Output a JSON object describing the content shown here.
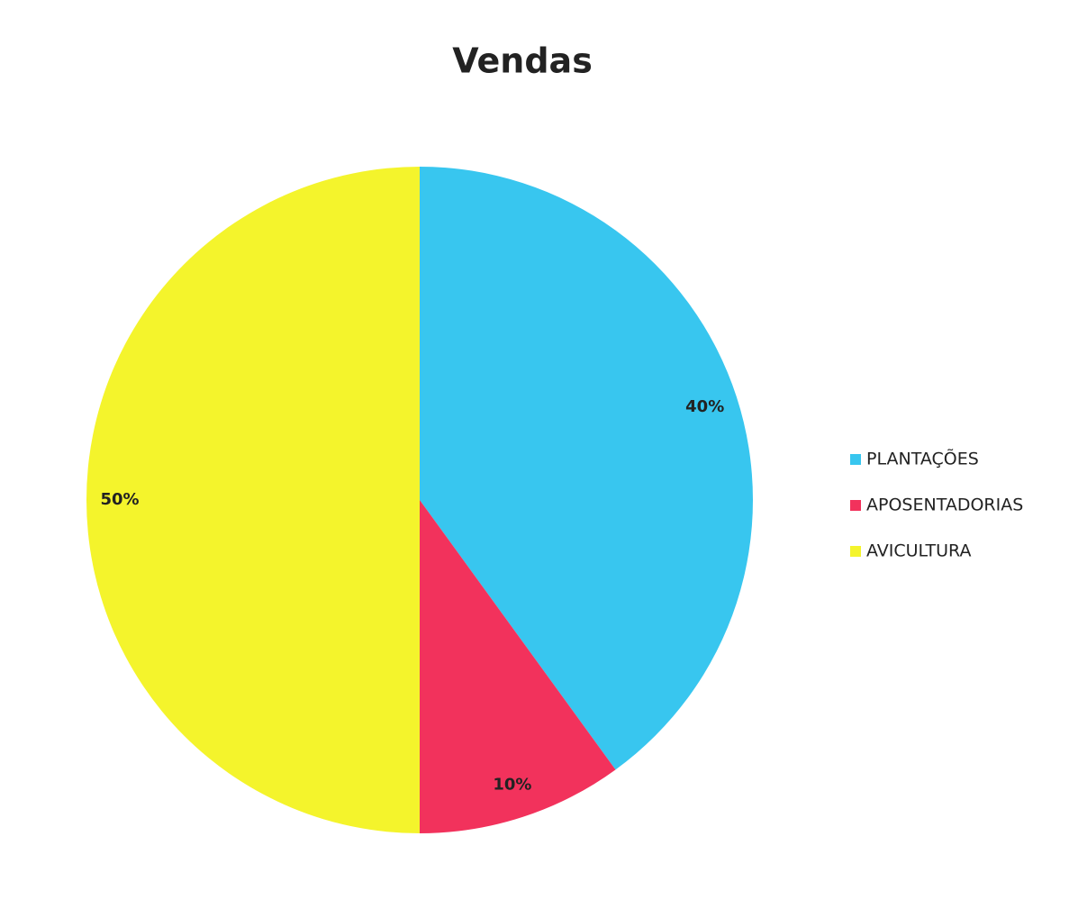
{
  "chart_data": {
    "type": "pie",
    "title": "Vendas",
    "categories": [
      "PLANTAÇÕES",
      "APOSENTADORIAS",
      "AVICULTURA"
    ],
    "values": [
      40,
      10,
      50
    ],
    "value_labels": [
      "40%",
      "10%",
      "50%"
    ],
    "colors": [
      "#38c6ef",
      "#f2325c",
      "#f4f42c"
    ],
    "legend": "right"
  }
}
